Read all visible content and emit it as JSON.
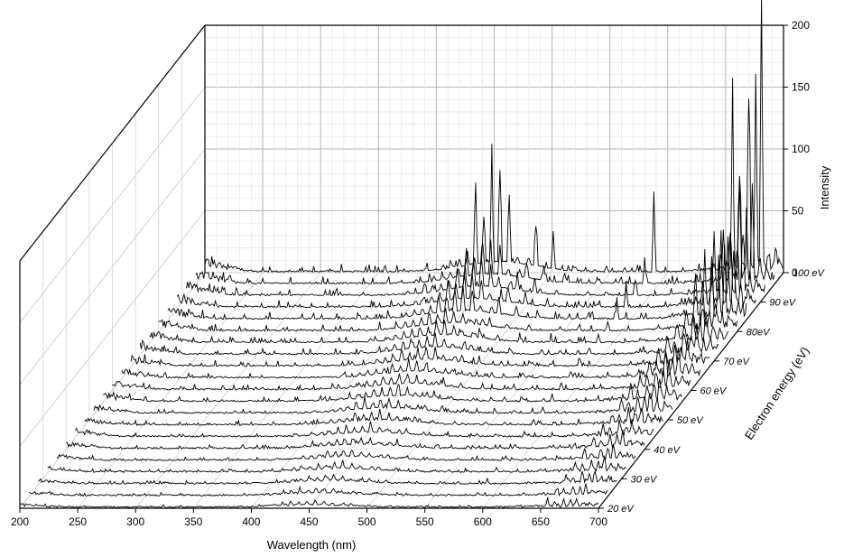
{
  "chart_data": {
    "type": "waterfall-3d-line",
    "title": "",
    "xlabel": "Wavelength (nm)",
    "ylabel": "Electron energy (eV)",
    "zlabel": "Intensity",
    "xlim": [
      200,
      700
    ],
    "zlim": [
      0,
      200
    ],
    "x_ticks": [
      "200",
      "250",
      "300",
      "350",
      "400",
      "450",
      "500",
      "550",
      "600",
      "650",
      "700"
    ],
    "z_ticks": [
      "0",
      "50",
      "100",
      "150",
      "200"
    ],
    "energy_ticks": [
      "20 eV",
      "30 eV",
      "40 eV",
      "50 eV",
      "60 eV",
      "70 eV",
      "80eV",
      "90 eV",
      "100 eV"
    ],
    "grid": true,
    "series_energies": [
      20,
      24,
      28,
      32,
      36,
      40,
      44,
      48,
      52,
      56,
      60,
      64,
      68,
      72,
      76,
      80,
      84,
      88,
      92,
      96,
      100
    ],
    "peaks_nm": [
      391,
      406,
      413,
      420,
      427,
      434,
      441,
      448,
      455,
      463,
      470,
      480,
      486,
      501,
      520,
      547,
      563,
      588,
      656
    ],
    "peak_intensity_at_100eV": {
      "434": 60,
      "441": 45,
      "448": 80,
      "455": 85,
      "463": 65,
      "486": 45,
      "501": 32,
      "588": 55,
      "656": 130,
      "662": 100,
      "670": 190,
      "676": 145,
      "681": 195
    },
    "line_color": "#000000"
  }
}
